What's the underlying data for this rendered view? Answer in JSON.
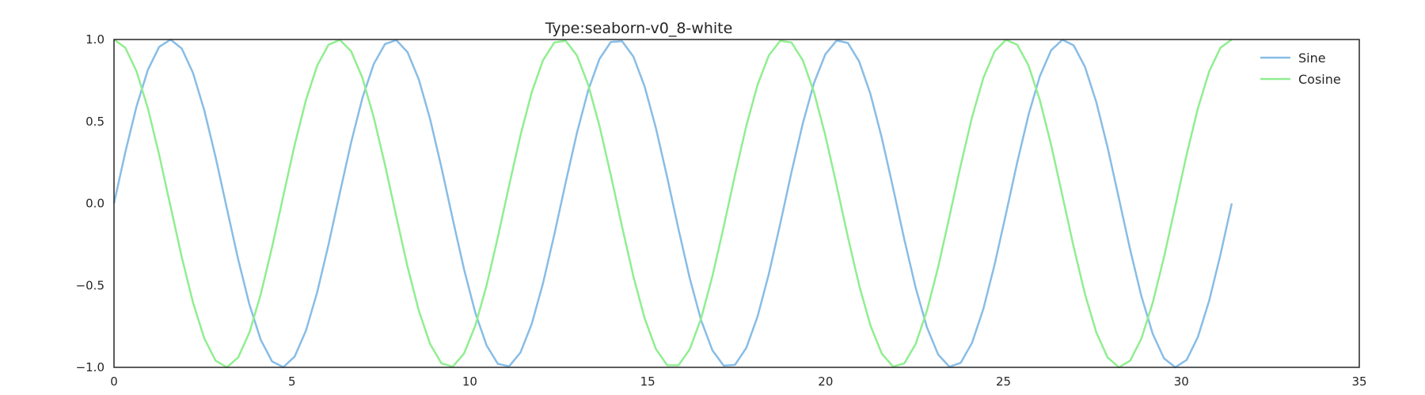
{
  "chart_data": {
    "type": "line",
    "title": "Type:seaborn-v0_8-white",
    "xlabel": "",
    "ylabel": "",
    "xlim": [
      0,
      35
    ],
    "ylim": [
      -1.0,
      1.0
    ],
    "xticks": [
      0,
      5,
      10,
      15,
      20,
      25,
      30,
      35
    ],
    "xtick_labels": [
      "0",
      "5",
      "10",
      "15",
      "20",
      "25",
      "30",
      "35"
    ],
    "yticks": [
      1.0,
      0.5,
      0.0,
      -0.5,
      -1.0
    ],
    "ytick_labels": [
      "1.0",
      "0.5",
      "0.0",
      "−0.5",
      "−1.0"
    ],
    "grid": false,
    "legend_position": "top-right",
    "x_start": 0,
    "x_end": 31.4159,
    "num_points": 100,
    "series": [
      {
        "name": "Sine",
        "function": "sin",
        "color": "#88bde6"
      },
      {
        "name": "Cosine",
        "function": "cos",
        "color": "#90ee90"
      }
    ]
  }
}
